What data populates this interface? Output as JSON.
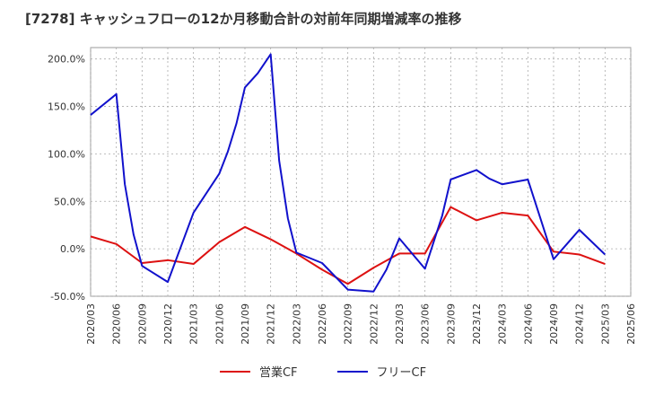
{
  "chart_data": {
    "type": "line",
    "title": "[7278]  キャッシュフローの12か月移動合計の対前年同期増減率の推移",
    "xlabel": "",
    "ylabel": "",
    "x": [
      "2020/03",
      "2020/06",
      "2020/09",
      "2020/12",
      "2021/03",
      "2021/06",
      "2021/09",
      "2021/12",
      "2022/03",
      "2022/06",
      "2022/09",
      "2022/12",
      "2023/03",
      "2023/06",
      "2023/09",
      "2023/12",
      "2024/03",
      "2024/06",
      "2024/09",
      "2024/12",
      "2025/03",
      "2025/06"
    ],
    "ylim": [
      -50,
      212
    ],
    "yticks": [
      200,
      150,
      100,
      50,
      0,
      -50
    ],
    "ytick_labels": [
      "200.0%",
      "150.0%",
      "100.0%",
      "50.0%",
      "0.0%",
      "-50.0%"
    ],
    "grid": true,
    "legend_position": "bottom",
    "series": [
      {
        "name": "営業CF",
        "color": "#dd1111",
        "points": [
          [
            0,
            13
          ],
          [
            1,
            5
          ],
          [
            2,
            -15
          ],
          [
            3,
            -12
          ],
          [
            4,
            -16
          ],
          [
            5,
            7
          ],
          [
            6,
            23
          ],
          [
            7,
            10
          ],
          [
            8,
            -5
          ],
          [
            9,
            -22
          ],
          [
            10,
            -37
          ],
          [
            11,
            -20
          ],
          [
            12,
            -5
          ],
          [
            13,
            -5
          ],
          [
            14,
            44
          ],
          [
            15,
            30
          ],
          [
            16,
            38
          ],
          [
            17,
            35
          ],
          [
            18,
            -3
          ],
          [
            19,
            -6
          ],
          [
            20,
            -16
          ]
        ]
      },
      {
        "name": "フリーCF",
        "color": "#1111cc",
        "points": [
          [
            0,
            141
          ],
          [
            1,
            163
          ],
          [
            1.33,
            68
          ],
          [
            1.67,
            15
          ],
          [
            2,
            -18
          ],
          [
            3,
            -35
          ],
          [
            4,
            38
          ],
          [
            5,
            79
          ],
          [
            5.33,
            102
          ],
          [
            5.67,
            132
          ],
          [
            6,
            170
          ],
          [
            6.5,
            185
          ],
          [
            7,
            205
          ],
          [
            7.33,
            93
          ],
          [
            7.67,
            32
          ],
          [
            8,
            -4
          ],
          [
            9,
            -15
          ],
          [
            10,
            -43
          ],
          [
            11,
            -45
          ],
          [
            11.5,
            -22
          ],
          [
            12,
            11
          ],
          [
            13,
            -21
          ],
          [
            13.67,
            35
          ],
          [
            14,
            73
          ],
          [
            15,
            83
          ],
          [
            15.5,
            74
          ],
          [
            16,
            68
          ],
          [
            17,
            73
          ],
          [
            17.5,
            31
          ],
          [
            18,
            -11
          ],
          [
            19,
            20
          ],
          [
            20,
            -6
          ]
        ]
      }
    ]
  }
}
